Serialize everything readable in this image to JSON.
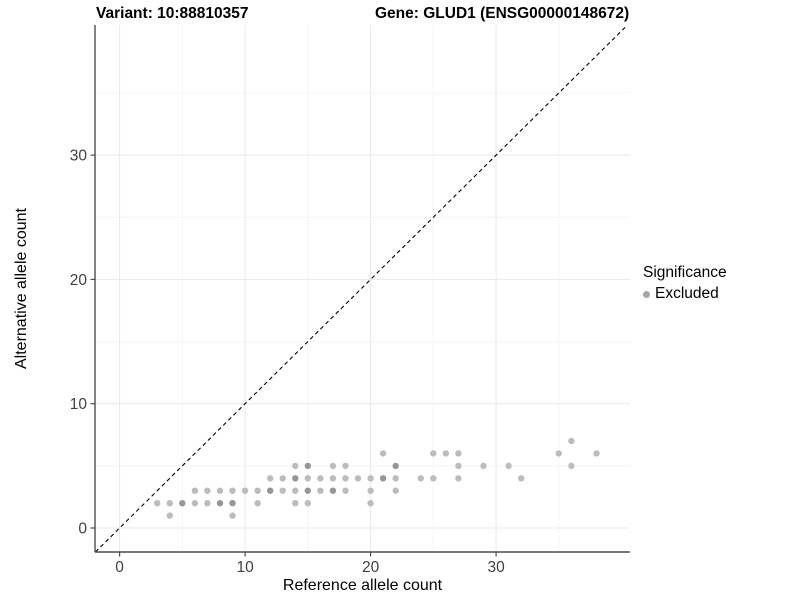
{
  "header": {
    "variant_title": "Variant: 10:88810357",
    "gene_title": "Gene: GLUD1 (ENSG00000148672)"
  },
  "legend": {
    "title": "Significance",
    "items": [
      {
        "label": "Excluded",
        "color": "#a6a6a6"
      }
    ]
  },
  "chart_data": {
    "type": "scatter",
    "title": "Variant: 10:88810357  /  Gene: GLUD1 (ENSG00000148672)",
    "xlabel": "Reference allele count",
    "ylabel": "Alternative allele count",
    "x_ticks": [
      0,
      10,
      20,
      30
    ],
    "y_ticks": [
      0,
      10,
      20,
      30
    ],
    "x_minor": [
      5,
      15,
      25,
      35
    ],
    "y_minor": [
      5,
      15,
      25,
      35
    ],
    "xlim": [
      -1.96,
      40.67
    ],
    "ylim": [
      -1.93,
      40.47
    ],
    "grid": "major+minor",
    "legend_position": "right",
    "identity_line": {
      "dashed": true,
      "equation": "y = x"
    },
    "colors": {
      "point": "#bcbcbc",
      "point_overlap": "#969696",
      "grid_major": "#e8e8e8",
      "grid_minor": "#f4f4f4",
      "axis": "#4d4d4d",
      "tick_label": "#404040",
      "identity_line": "#000000"
    },
    "series": [
      {
        "name": "Excluded",
        "points_format": "[reference_allele_count, alternative_allele_count, stack(1=single,2=overplotted)]",
        "points": [
          [
            4,
            1,
            1
          ],
          [
            9,
            1,
            1
          ],
          [
            3,
            2,
            1
          ],
          [
            4,
            2,
            1
          ],
          [
            5,
            2,
            2
          ],
          [
            6,
            2,
            1
          ],
          [
            7,
            2,
            1
          ],
          [
            8,
            2,
            2
          ],
          [
            9,
            2,
            2
          ],
          [
            11,
            2,
            1
          ],
          [
            14,
            2,
            1
          ],
          [
            15,
            2,
            1
          ],
          [
            20,
            2,
            1
          ],
          [
            6,
            3,
            1
          ],
          [
            7,
            3,
            1
          ],
          [
            8,
            3,
            1
          ],
          [
            9,
            3,
            1
          ],
          [
            10,
            3,
            1
          ],
          [
            11,
            3,
            1
          ],
          [
            12,
            3,
            2
          ],
          [
            13,
            3,
            1
          ],
          [
            14,
            3,
            1
          ],
          [
            15,
            3,
            2
          ],
          [
            16,
            3,
            1
          ],
          [
            17,
            3,
            2
          ],
          [
            18,
            3,
            1
          ],
          [
            20,
            3,
            1
          ],
          [
            22,
            3,
            1
          ],
          [
            12,
            4,
            1
          ],
          [
            13,
            4,
            1
          ],
          [
            14,
            4,
            2
          ],
          [
            15,
            4,
            1
          ],
          [
            16,
            4,
            1
          ],
          [
            17,
            4,
            1
          ],
          [
            18,
            4,
            1
          ],
          [
            19,
            4,
            1
          ],
          [
            20,
            4,
            1
          ],
          [
            21,
            4,
            2
          ],
          [
            22,
            4,
            1
          ],
          [
            24,
            4,
            1
          ],
          [
            25,
            4,
            1
          ],
          [
            27,
            4,
            1
          ],
          [
            32,
            4,
            1
          ],
          [
            14,
            5,
            1
          ],
          [
            15,
            5,
            2
          ],
          [
            17,
            5,
            1
          ],
          [
            18,
            5,
            1
          ],
          [
            22,
            5,
            2
          ],
          [
            27,
            5,
            1
          ],
          [
            29,
            5,
            1
          ],
          [
            31,
            5,
            1
          ],
          [
            36,
            5,
            1
          ],
          [
            21,
            6,
            1
          ],
          [
            25,
            6,
            1
          ],
          [
            26,
            6,
            1
          ],
          [
            27,
            6,
            1
          ],
          [
            35,
            6,
            1
          ],
          [
            38,
            6,
            1
          ],
          [
            36,
            7,
            1
          ]
        ]
      }
    ]
  }
}
